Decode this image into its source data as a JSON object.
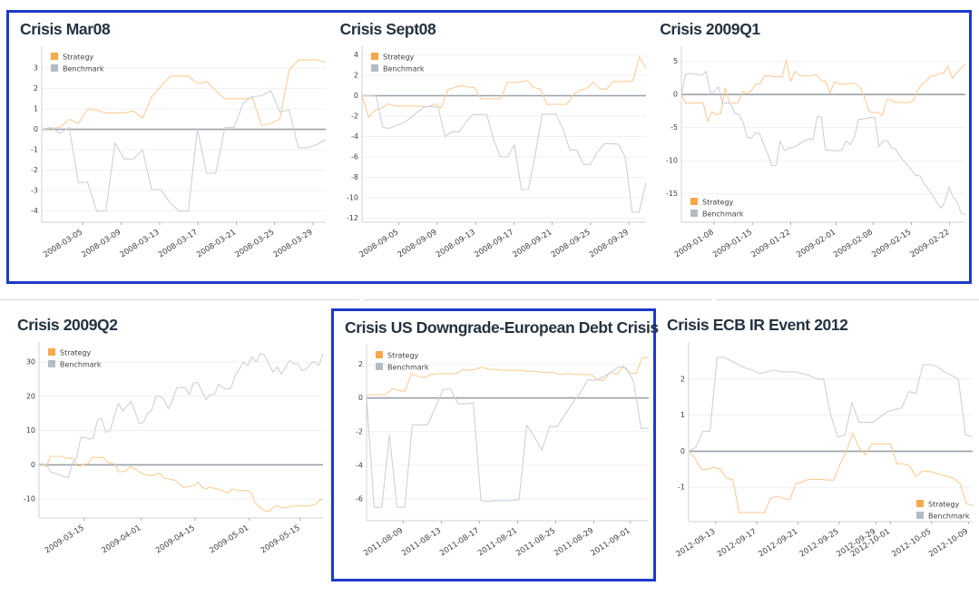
{
  "colors": {
    "strategy_swatch": "#f9a847",
    "strategy_line": "#fbcd97",
    "benchmark_swatch": "#b4bcc3",
    "benchmark_line": "#ccd2d8",
    "highlight_border": "#1e3ac8",
    "zero_line": "#9aa1a8",
    "grid_line": "#f0f1f3",
    "axis_line": "#cdd3d8",
    "title_text": "#253341"
  },
  "legend": {
    "strategy_label": "Strategy",
    "benchmark_label": "Benchmark"
  },
  "chart_data": [
    {
      "type": "line",
      "title": "Crisis Mar08",
      "ylim": [
        -4.55,
        3.85
      ],
      "yticks": [
        3,
        2,
        1,
        0,
        -1,
        -2,
        -3,
        -4
      ],
      "xticks": [
        {
          "label": "2008-03-05",
          "pos": 0.145
        },
        {
          "label": "2008-03-09",
          "pos": 0.28
        },
        {
          "label": "2008-03-13",
          "pos": 0.415
        },
        {
          "label": "2008-03-17",
          "pos": 0.55
        },
        {
          "label": "2008-03-21",
          "pos": 0.685
        },
        {
          "label": "2008-03-25",
          "pos": 0.82
        },
        {
          "label": "2008-03-29",
          "pos": 0.955
        }
      ],
      "legend_position": "top-left",
      "highlighted": true,
      "series": [
        {
          "name": "Strategy",
          "values": [
            0,
            0.05,
            0.1,
            0.5,
            0.3,
            1.0,
            0.95,
            0.8,
            0.8,
            0.8,
            0.9,
            0.55,
            1.6,
            2.1,
            2.6,
            2.6,
            2.6,
            2.25,
            2.35,
            1.9,
            1.5,
            1.5,
            1.5,
            1.55,
            0.2,
            0.3,
            0.5,
            2.9,
            3.4,
            3.4,
            3.4,
            3.3
          ]
        },
        {
          "name": "Benchmark",
          "values": [
            0,
            0.1,
            -0.2,
            0.1,
            -2.6,
            -2.6,
            -4.0,
            -4.0,
            -0.65,
            -1.45,
            -1.45,
            -1.0,
            -2.95,
            -2.95,
            -3.6,
            -4.0,
            -4.0,
            0.0,
            -2.15,
            -2.15,
            0.1,
            0.1,
            1.3,
            1.6,
            1.65,
            1.9,
            0.85,
            0.95,
            -0.9,
            -0.9,
            -0.75,
            -0.5
          ]
        }
      ]
    },
    {
      "type": "line",
      "title": "Crisis Sept08",
      "ylim": [
        -12.4,
        4.4
      ],
      "yticks": [
        4,
        2,
        0,
        -2,
        -4,
        -6,
        -8,
        -10,
        -12
      ],
      "xticks": [
        {
          "label": "2008-09-05",
          "pos": 0.13
        },
        {
          "label": "2008-09-09",
          "pos": 0.265
        },
        {
          "label": "2008-09-13",
          "pos": 0.4
        },
        {
          "label": "2008-09-17",
          "pos": 0.535
        },
        {
          "label": "2008-09-21",
          "pos": 0.67
        },
        {
          "label": "2008-09-25",
          "pos": 0.805
        },
        {
          "label": "2008-09-29",
          "pos": 0.94
        }
      ],
      "legend_position": "top-left",
      "highlighted": true,
      "series": [
        {
          "name": "Strategy",
          "values": [
            0,
            -2.1,
            -1.4,
            -1.2,
            -0.8,
            -1.0,
            -1.0,
            -1.0,
            -1.0,
            -1.05,
            -1.1,
            -0.8,
            -1.2,
            0.6,
            0.8,
            1.0,
            0.85,
            0.8,
            -0.3,
            -0.3,
            -0.3,
            -0.3,
            1.3,
            1.3,
            1.35,
            1.5,
            0.8,
            0.65,
            -0.85,
            -0.85,
            -0.85,
            -0.85,
            0.1,
            0.55,
            0.7,
            1.3,
            0.7,
            0.6,
            1.4,
            1.4,
            1.4,
            1.45,
            3.8,
            2.7
          ]
        },
        {
          "name": "Benchmark",
          "values": [
            0,
            0,
            0.05,
            -3.1,
            -3.2,
            -2.9,
            -2.65,
            -2.2,
            -1.6,
            -1.1,
            -1.05,
            -1.2,
            -4.0,
            -3.5,
            -3.55,
            -2.6,
            -1.85,
            -1.85,
            -1.85,
            -4.3,
            -6.0,
            -6.0,
            -4.8,
            -9.2,
            -9.2,
            -5.8,
            -1.8,
            -1.8,
            -1.8,
            -3.3,
            -5.3,
            -5.35,
            -6.75,
            -6.7,
            -5.5,
            -4.7,
            -4.7,
            -4.75,
            -6.0,
            -11.4,
            -11.4,
            -8.5
          ]
        }
      ]
    },
    {
      "type": "line",
      "title": "Crisis 2009Q1",
      "ylim": [
        -19.3,
        6.6
      ],
      "yticks": [
        5,
        0,
        -5,
        -10,
        -15
      ],
      "xticks": [
        {
          "label": "2009-01-08",
          "pos": 0.115
        },
        {
          "label": "2009-01-15",
          "pos": 0.25
        },
        {
          "label": "2009-01-22",
          "pos": 0.385
        },
        {
          "label": "2009-02-01",
          "pos": 0.545
        },
        {
          "label": "2009-02-08",
          "pos": 0.675
        },
        {
          "label": "2009-02-15",
          "pos": 0.81
        },
        {
          "label": "2009-02-22",
          "pos": 0.945
        }
      ],
      "legend_position": "bottom-left",
      "highlighted": true,
      "series": [
        {
          "name": "Strategy",
          "values": [
            0,
            -1.3,
            -1.3,
            -1.3,
            -1.3,
            -1.2,
            -4.1,
            -2.6,
            -3.0,
            -2.9,
            1.0,
            -1.2,
            -1.3,
            -1.2,
            0.5,
            0.1,
            0.6,
            1.5,
            1.6,
            2.8,
            2.8,
            2.7,
            2.7,
            2.6,
            5.2,
            2.0,
            3.5,
            2.9,
            2.8,
            2.8,
            2.9,
            3.0,
            2.1,
            2.0,
            0.2,
            1.9,
            1.6,
            1.6,
            1.6,
            1.7,
            1.6,
            1.0,
            -0.6,
            -2.6,
            -2.7,
            -2.7,
            -3.2,
            -0.8,
            -0.8,
            -1.2,
            -1.2,
            -1.2,
            -1.2,
            -1.0,
            0.5,
            1.5,
            2.0,
            2.8,
            2.8,
            3.2,
            3.2,
            4.3,
            2.4,
            3.3,
            4.0,
            4.6
          ]
        },
        {
          "name": "Benchmark",
          "values": [
            0,
            3.0,
            3.2,
            3.1,
            3.0,
            2.9,
            3.5,
            0.3,
            0.4,
            1.2,
            -1.5,
            -1.2,
            -1.5,
            -2.8,
            -3.0,
            -4.2,
            -6.5,
            -6.6,
            -5.8,
            -5.9,
            -7.5,
            -9.0,
            -10.8,
            -10.7,
            -7.0,
            -8.5,
            -8.1,
            -8.0,
            -7.8,
            -7.3,
            -7.0,
            -6.7,
            -6.8,
            -3.3,
            -3.4,
            -8.4,
            -8.4,
            -8.5,
            -8.5,
            -8.4,
            -7.0,
            -7.6,
            -6.5,
            -3.8,
            -3.7,
            -3.6,
            -3.5,
            -3.5,
            -7.9,
            -7.0,
            -7.0,
            -8.0,
            -8.2,
            -9.2,
            -10.0,
            -10.7,
            -11.5,
            -12.2,
            -12.3,
            -13.5,
            -14.3,
            -15.2,
            -16.2,
            -17.2,
            -16.2,
            -14.0,
            -15.5,
            -16.2,
            -18.0,
            -18.1
          ]
        }
      ]
    },
    {
      "type": "line",
      "title": "Crisis 2009Q2",
      "ylim": [
        -15.5,
        34.5
      ],
      "yticks": [
        30,
        20,
        10,
        0,
        -10
      ],
      "xticks": [
        {
          "label": "2009-03-15",
          "pos": 0.16
        },
        {
          "label": "2009-04-01",
          "pos": 0.36
        },
        {
          "label": "2009-04-15",
          "pos": 0.55
        },
        {
          "label": "2009-05-01",
          "pos": 0.74
        },
        {
          "label": "2009-05-15",
          "pos": 0.92
        }
      ],
      "legend_position": "top-left",
      "highlighted": false,
      "series": [
        {
          "name": "Strategy",
          "values": [
            0.5,
            0,
            -0.5,
            2.5,
            2.5,
            2.5,
            2.5,
            2.0,
            1.8,
            2.0,
            -0.3,
            -0.3,
            0.2,
            0.3,
            2.2,
            2.2,
            2.1,
            2.2,
            0.8,
            0.5,
            0.3,
            -2.0,
            -2.0,
            -1.8,
            -0.5,
            -1.0,
            -1.5,
            -2.5,
            -2.8,
            -3.0,
            -3.0,
            -2.7,
            -2.5,
            -4.0,
            -4.0,
            -4.3,
            -4.5,
            -5.5,
            -6.5,
            -6.5,
            -6.3,
            -6.0,
            -5.0,
            -6.5,
            -7.0,
            -6.5,
            -6.8,
            -7.0,
            -7.3,
            -7.8,
            -8.2,
            -7.0,
            -7.3,
            -7.5,
            -7.5,
            -7.5,
            -8.0,
            -11.0,
            -12.0,
            -13.0,
            -13.5,
            -13.5,
            -12.2,
            -12.0,
            -12.5,
            -12.5,
            -12.3,
            -12.0,
            -12.0,
            -11.8,
            -12.0,
            -12.0,
            -11.8,
            -11.5,
            -10.3,
            -10.0
          ]
        },
        {
          "name": "Benchmark",
          "values": [
            0,
            0.3,
            -0.5,
            -2.3,
            -2.5,
            -3.0,
            -3.5,
            -3.7,
            0.5,
            2.0,
            8.0,
            8.0,
            7.5,
            7.8,
            13.0,
            13.5,
            9.5,
            10.0,
            14.0,
            18.0,
            15.8,
            17.0,
            18.5,
            15.5,
            12.0,
            12.5,
            15.0,
            16.0,
            20.0,
            20.0,
            19.0,
            16.3,
            19.0,
            22.5,
            22.5,
            22.5,
            20.5,
            24.0,
            24.0,
            21.5,
            19.0,
            20.5,
            20.5,
            23.5,
            22.5,
            22.0,
            22.5,
            26.0,
            28.0,
            30.0,
            29.0,
            31.5,
            30.0,
            32.5,
            32.0,
            29.5,
            27.0,
            28.5,
            26.5,
            28.5,
            30.5,
            29.5,
            29.5,
            27.5,
            28.0,
            29.5,
            30.0,
            29.0,
            32.5
          ]
        }
      ]
    },
    {
      "type": "line",
      "title": "Crisis US Downgrade-European Debt Crisis",
      "ylim": [
        -7.3,
        2.9
      ],
      "yticks": [
        2,
        0,
        -2,
        -4,
        -6
      ],
      "xticks": [
        {
          "label": "2011-08-09",
          "pos": 0.13
        },
        {
          "label": "2011-08-13",
          "pos": 0.265
        },
        {
          "label": "2011-08-17",
          "pos": 0.4
        },
        {
          "label": "2011-08-21",
          "pos": 0.535
        },
        {
          "label": "2011-08-25",
          "pos": 0.67
        },
        {
          "label": "2011-08-29",
          "pos": 0.805
        },
        {
          "label": "2011-09-01",
          "pos": 0.935
        }
      ],
      "legend_position": "top-left",
      "highlighted": true,
      "series": [
        {
          "name": "Strategy",
          "values": [
            0.15,
            0.2,
            0.2,
            0.2,
            0.55,
            0.45,
            0.4,
            1.45,
            1.3,
            1.2,
            1.4,
            1.45,
            1.45,
            1.45,
            1.45,
            1.7,
            1.65,
            1.7,
            1.85,
            1.7,
            1.7,
            1.65,
            1.65,
            1.65,
            1.65,
            1.6,
            1.6,
            1.55,
            1.5,
            1.55,
            1.4,
            1.45,
            1.45,
            1.4,
            1.4,
            1.4,
            1.1,
            1.05,
            1.55,
            1.4,
            1.9,
            1.5,
            1.45,
            2.4,
            2.4
          ]
        },
        {
          "name": "Benchmark",
          "values": [
            0,
            -6.5,
            -6.5,
            -2.2,
            -6.5,
            -6.5,
            -1.6,
            -1.6,
            -1.6,
            -0.6,
            0.5,
            0.55,
            -0.35,
            -0.35,
            -0.3,
            -6.1,
            -6.15,
            -6.1,
            -6.1,
            -6.1,
            -6.05,
            -1.6,
            -2.3,
            -3.1,
            -1.7,
            -1.7,
            -1.0,
            -0.3,
            0.3,
            1.1,
            1.05,
            1.25,
            1.5,
            1.85,
            1.8,
            1.0,
            -1.8,
            -1.8
          ]
        }
      ]
    },
    {
      "type": "line",
      "title": "Crisis ECB IR Event 2012",
      "ylim": [
        -1.95,
        2.9
      ],
      "yticks": [
        2,
        1,
        0,
        -1
      ],
      "xticks": [
        {
          "label": "2012-09-13",
          "pos": 0.095
        },
        {
          "label": "2012-09-17",
          "pos": 0.24
        },
        {
          "label": "2012-09-21",
          "pos": 0.385
        },
        {
          "label": "2012-09-25",
          "pos": 0.53
        },
        {
          "label": "2012-09-29",
          "pos": 0.66
        },
        {
          "label": "2012-10-01",
          "pos": 0.71
        },
        {
          "label": "2012-10-05",
          "pos": 0.855
        },
        {
          "label": "2012-10-09",
          "pos": 0.985
        }
      ],
      "legend_position": "bottom-right",
      "highlighted": false,
      "series": [
        {
          "name": "Strategy",
          "values": [
            0,
            -0.2,
            -0.5,
            -0.5,
            -0.45,
            -0.5,
            -0.75,
            -0.78,
            -1.7,
            -1.7,
            -1.7,
            -1.7,
            -1.7,
            -1.3,
            -1.25,
            -1.3,
            -1.35,
            -0.9,
            -0.85,
            -0.78,
            -0.78,
            -0.78,
            -0.8,
            -0.8,
            -0.35,
            0.0,
            0.5,
            0.1,
            -0.1,
            0.2,
            0.2,
            0.2,
            0.2,
            -0.35,
            -0.35,
            -0.4,
            -0.7,
            -0.55,
            -0.55,
            -0.6,
            -0.65,
            -0.7,
            -0.75,
            -0.9,
            -1.45,
            -1.5
          ]
        },
        {
          "name": "Benchmark",
          "values": [
            0,
            0.1,
            0.55,
            0.55,
            2.6,
            2.6,
            2.5,
            2.4,
            2.3,
            2.25,
            2.15,
            2.2,
            2.25,
            2.2,
            2.2,
            2.2,
            2.15,
            2.1,
            2.0,
            2.0,
            1.0,
            0.4,
            0.45,
            1.35,
            0.8,
            0.8,
            0.8,
            0.95,
            1.1,
            1.15,
            1.2,
            1.65,
            1.6,
            2.4,
            2.4,
            2.35,
            2.2,
            2.1,
            2.0,
            0.45,
            0.4
          ]
        }
      ]
    }
  ]
}
